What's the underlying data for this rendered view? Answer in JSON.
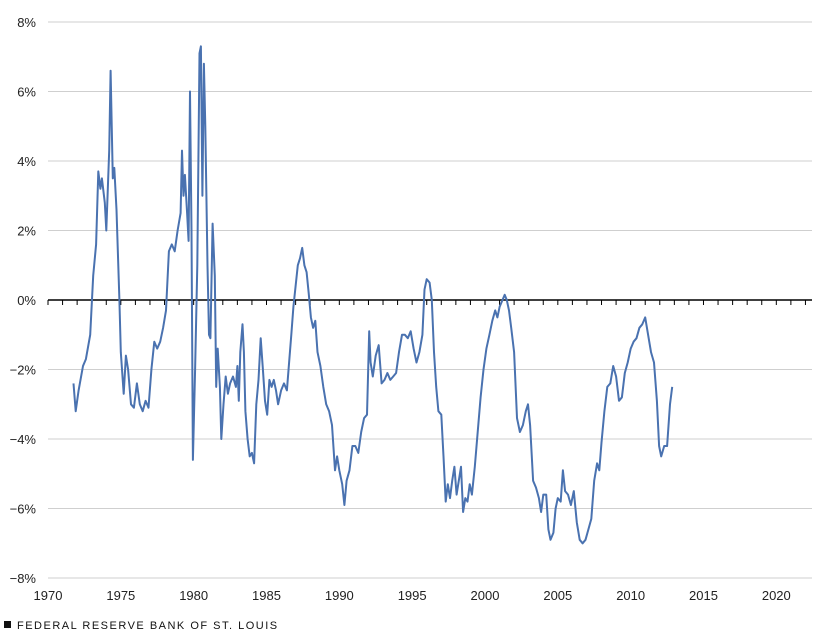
{
  "chart_data": {
    "type": "line",
    "title": "",
    "xlabel": "",
    "ylabel": "",
    "xlim": [
      1970,
      2022
    ],
    "ylim": [
      -8,
      8
    ],
    "grid": true,
    "legend": "none",
    "x_ticks": [
      1970,
      1975,
      1980,
      1985,
      1990,
      1995,
      2000,
      2005,
      2010,
      2015,
      2020
    ],
    "x_tick_labels": [
      "1970",
      "1975",
      "1980",
      "1985",
      "1990",
      "1995",
      "2000",
      "2005",
      "2010",
      "2015",
      "2020"
    ],
    "y_ticks": [
      -8,
      -6,
      -4,
      -2,
      0,
      2,
      4,
      6,
      8
    ],
    "y_tick_labels": [
      "−8%",
      "−6%",
      "−4%",
      "−2%",
      "0%",
      "2%",
      "4%",
      "6%",
      "8%"
    ],
    "zero_line": true,
    "series": [
      {
        "color": "#4a72b0",
        "points": [
          [
            1971.75,
            -2.4
          ],
          [
            1971.9,
            -3.2
          ],
          [
            1972.1,
            -2.6
          ],
          [
            1972.4,
            -1.9
          ],
          [
            1972.6,
            -1.7
          ],
          [
            1972.9,
            -1.0
          ],
          [
            1973.1,
            0.7
          ],
          [
            1973.3,
            1.6
          ],
          [
            1973.45,
            3.7
          ],
          [
            1973.6,
            3.2
          ],
          [
            1973.7,
            3.5
          ],
          [
            1973.9,
            2.8
          ],
          [
            1974.0,
            2.0
          ],
          [
            1974.2,
            4.3
          ],
          [
            1974.3,
            6.6
          ],
          [
            1974.45,
            3.5
          ],
          [
            1974.55,
            3.8
          ],
          [
            1974.7,
            2.6
          ],
          [
            1974.9,
            0.0
          ],
          [
            1975.0,
            -1.5
          ],
          [
            1975.2,
            -2.7
          ],
          [
            1975.35,
            -1.6
          ],
          [
            1975.5,
            -2.0
          ],
          [
            1975.7,
            -3.0
          ],
          [
            1975.9,
            -3.1
          ],
          [
            1976.1,
            -2.4
          ],
          [
            1976.3,
            -3.0
          ],
          [
            1976.5,
            -3.2
          ],
          [
            1976.7,
            -2.9
          ],
          [
            1976.9,
            -3.1
          ],
          [
            1977.1,
            -2.0
          ],
          [
            1977.3,
            -1.2
          ],
          [
            1977.5,
            -1.4
          ],
          [
            1977.7,
            -1.2
          ],
          [
            1977.9,
            -0.8
          ],
          [
            1978.1,
            -0.3
          ],
          [
            1978.3,
            1.4
          ],
          [
            1978.5,
            1.6
          ],
          [
            1978.7,
            1.4
          ],
          [
            1978.9,
            2.0
          ],
          [
            1979.1,
            2.5
          ],
          [
            1979.2,
            4.3
          ],
          [
            1979.3,
            3.0
          ],
          [
            1979.4,
            3.6
          ],
          [
            1979.55,
            2.5
          ],
          [
            1979.65,
            1.7
          ],
          [
            1979.75,
            6.0
          ],
          [
            1979.85,
            2.0
          ],
          [
            1979.95,
            -4.6
          ],
          [
            1980.1,
            -2.0
          ],
          [
            1980.25,
            1.0
          ],
          [
            1980.4,
            7.1
          ],
          [
            1980.5,
            7.3
          ],
          [
            1980.6,
            3.0
          ],
          [
            1980.7,
            6.8
          ],
          [
            1980.8,
            5.0
          ],
          [
            1980.95,
            1.0
          ],
          [
            1981.05,
            -1.0
          ],
          [
            1981.15,
            -1.1
          ],
          [
            1981.3,
            2.2
          ],
          [
            1981.45,
            0.7
          ],
          [
            1981.55,
            -2.5
          ],
          [
            1981.65,
            -1.4
          ],
          [
            1981.8,
            -2.5
          ],
          [
            1981.9,
            -4.0
          ],
          [
            1982.05,
            -3.0
          ],
          [
            1982.2,
            -2.2
          ],
          [
            1982.35,
            -2.7
          ],
          [
            1982.5,
            -2.4
          ],
          [
            1982.7,
            -2.2
          ],
          [
            1982.9,
            -2.5
          ],
          [
            1983.0,
            -1.9
          ],
          [
            1983.1,
            -2.9
          ],
          [
            1983.2,
            -1.5
          ],
          [
            1983.35,
            -0.7
          ],
          [
            1983.45,
            -1.5
          ],
          [
            1983.55,
            -3.2
          ],
          [
            1983.7,
            -4.0
          ],
          [
            1983.85,
            -4.5
          ],
          [
            1984.0,
            -4.4
          ],
          [
            1984.15,
            -4.7
          ],
          [
            1984.3,
            -3.0
          ],
          [
            1984.45,
            -2.3
          ],
          [
            1984.6,
            -1.1
          ],
          [
            1984.75,
            -2.0
          ],
          [
            1984.9,
            -2.9
          ],
          [
            1985.05,
            -3.3
          ],
          [
            1985.2,
            -2.3
          ],
          [
            1985.35,
            -2.5
          ],
          [
            1985.5,
            -2.3
          ],
          [
            1985.65,
            -2.6
          ],
          [
            1985.8,
            -3.0
          ],
          [
            1986.0,
            -2.6
          ],
          [
            1986.2,
            -2.4
          ],
          [
            1986.4,
            -2.6
          ],
          [
            1986.55,
            -1.8
          ],
          [
            1986.7,
            -1.0
          ],
          [
            1986.85,
            -0.2
          ],
          [
            1987.0,
            0.4
          ],
          [
            1987.15,
            1.0
          ],
          [
            1987.3,
            1.2
          ],
          [
            1987.45,
            1.5
          ],
          [
            1987.6,
            1.0
          ],
          [
            1987.75,
            0.8
          ],
          [
            1987.9,
            0.2
          ],
          [
            1988.05,
            -0.5
          ],
          [
            1988.2,
            -0.8
          ],
          [
            1988.35,
            -0.6
          ],
          [
            1988.5,
            -1.5
          ],
          [
            1988.7,
            -1.9
          ],
          [
            1988.9,
            -2.5
          ],
          [
            1989.1,
            -3.0
          ],
          [
            1989.3,
            -3.2
          ],
          [
            1989.5,
            -3.6
          ],
          [
            1989.7,
            -4.9
          ],
          [
            1989.85,
            -4.5
          ],
          [
            1990.0,
            -4.9
          ],
          [
            1990.2,
            -5.3
          ],
          [
            1990.35,
            -5.9
          ],
          [
            1990.5,
            -5.2
          ],
          [
            1990.7,
            -4.9
          ],
          [
            1990.9,
            -4.2
          ],
          [
            1991.1,
            -4.2
          ],
          [
            1991.3,
            -4.4
          ],
          [
            1991.5,
            -3.8
          ],
          [
            1991.7,
            -3.4
          ],
          [
            1991.9,
            -3.3
          ],
          [
            1992.05,
            -0.9
          ],
          [
            1992.15,
            -1.8
          ],
          [
            1992.3,
            -2.2
          ],
          [
            1992.5,
            -1.6
          ],
          [
            1992.7,
            -1.3
          ],
          [
            1992.9,
            -2.4
          ],
          [
            1993.1,
            -2.3
          ],
          [
            1993.3,
            -2.1
          ],
          [
            1993.5,
            -2.3
          ],
          [
            1993.7,
            -2.2
          ],
          [
            1993.9,
            -2.1
          ],
          [
            1994.1,
            -1.5
          ],
          [
            1994.3,
            -1.0
          ],
          [
            1994.5,
            -1.0
          ],
          [
            1994.7,
            -1.1
          ],
          [
            1994.9,
            -0.9
          ],
          [
            1995.1,
            -1.4
          ],
          [
            1995.3,
            -1.8
          ],
          [
            1995.5,
            -1.5
          ],
          [
            1995.7,
            -1.0
          ],
          [
            1995.85,
            0.3
          ],
          [
            1996.0,
            0.6
          ],
          [
            1996.2,
            0.5
          ],
          [
            1996.35,
            0.0
          ],
          [
            1996.5,
            -1.5
          ],
          [
            1996.65,
            -2.5
          ],
          [
            1996.8,
            -3.2
          ],
          [
            1997.0,
            -3.3
          ],
          [
            1997.15,
            -4.5
          ],
          [
            1997.3,
            -5.8
          ],
          [
            1997.45,
            -5.3
          ],
          [
            1997.6,
            -5.7
          ],
          [
            1997.75,
            -5.2
          ],
          [
            1997.9,
            -4.8
          ],
          [
            1998.05,
            -5.6
          ],
          [
            1998.2,
            -5.2
          ],
          [
            1998.35,
            -4.8
          ],
          [
            1998.5,
            -6.1
          ],
          [
            1998.65,
            -5.7
          ],
          [
            1998.8,
            -5.8
          ],
          [
            1998.95,
            -5.3
          ],
          [
            1999.1,
            -5.6
          ],
          [
            1999.3,
            -4.8
          ],
          [
            1999.5,
            -3.8
          ],
          [
            1999.7,
            -2.8
          ],
          [
            1999.9,
            -2.0
          ],
          [
            2000.1,
            -1.4
          ],
          [
            2000.3,
            -1.0
          ],
          [
            2000.5,
            -0.6
          ],
          [
            2000.7,
            -0.3
          ],
          [
            2000.85,
            -0.5
          ],
          [
            2001.0,
            -0.2
          ],
          [
            2001.2,
            0.0
          ],
          [
            2001.35,
            0.15
          ],
          [
            2001.5,
            0.0
          ],
          [
            2001.65,
            -0.3
          ],
          [
            2001.8,
            -0.8
          ],
          [
            2002.0,
            -1.5
          ],
          [
            2002.2,
            -3.4
          ],
          [
            2002.4,
            -3.8
          ],
          [
            2002.6,
            -3.6
          ],
          [
            2002.8,
            -3.2
          ],
          [
            2002.95,
            -3.0
          ],
          [
            2003.1,
            -3.6
          ],
          [
            2003.3,
            -5.2
          ],
          [
            2003.5,
            -5.4
          ],
          [
            2003.7,
            -5.7
          ],
          [
            2003.85,
            -6.1
          ],
          [
            2004.0,
            -5.6
          ],
          [
            2004.2,
            -5.6
          ],
          [
            2004.35,
            -6.6
          ],
          [
            2004.5,
            -6.9
          ],
          [
            2004.7,
            -6.7
          ],
          [
            2004.85,
            -6.0
          ],
          [
            2005.0,
            -5.7
          ],
          [
            2005.2,
            -5.8
          ],
          [
            2005.35,
            -4.9
          ],
          [
            2005.5,
            -5.5
          ],
          [
            2005.7,
            -5.6
          ],
          [
            2005.9,
            -5.9
          ],
          [
            2006.1,
            -5.5
          ],
          [
            2006.3,
            -6.4
          ],
          [
            2006.5,
            -6.9
          ],
          [
            2006.7,
            -7.0
          ],
          [
            2006.9,
            -6.9
          ],
          [
            2007.1,
            -6.6
          ],
          [
            2007.3,
            -6.3
          ],
          [
            2007.5,
            -5.2
          ],
          [
            2007.7,
            -4.7
          ],
          [
            2007.85,
            -4.9
          ],
          [
            2008.0,
            -4.1
          ],
          [
            2008.2,
            -3.2
          ],
          [
            2008.4,
            -2.5
          ],
          [
            2008.6,
            -2.4
          ],
          [
            2008.8,
            -1.9
          ],
          [
            2009.0,
            -2.2
          ],
          [
            2009.2,
            -2.9
          ],
          [
            2009.4,
            -2.8
          ],
          [
            2009.6,
            -2.1
          ],
          [
            2009.8,
            -1.8
          ],
          [
            2010.0,
            -1.4
          ],
          [
            2010.2,
            -1.2
          ],
          [
            2010.4,
            -1.1
          ],
          [
            2010.6,
            -0.8
          ],
          [
            2010.8,
            -0.7
          ],
          [
            2011.0,
            -0.5
          ],
          [
            2011.2,
            -1.0
          ],
          [
            2011.4,
            -1.5
          ],
          [
            2011.6,
            -1.8
          ],
          [
            2011.8,
            -2.9
          ],
          [
            2011.95,
            -4.2
          ],
          [
            2012.1,
            -4.5
          ],
          [
            2012.3,
            -4.2
          ],
          [
            2012.5,
            -4.2
          ],
          [
            2012.7,
            -3.0
          ],
          [
            2012.85,
            -2.5
          ]
        ]
      }
    ]
  },
  "footer": {
    "source_label": "FEDERAL RESERVE BANK OF ST. LOUIS"
  }
}
